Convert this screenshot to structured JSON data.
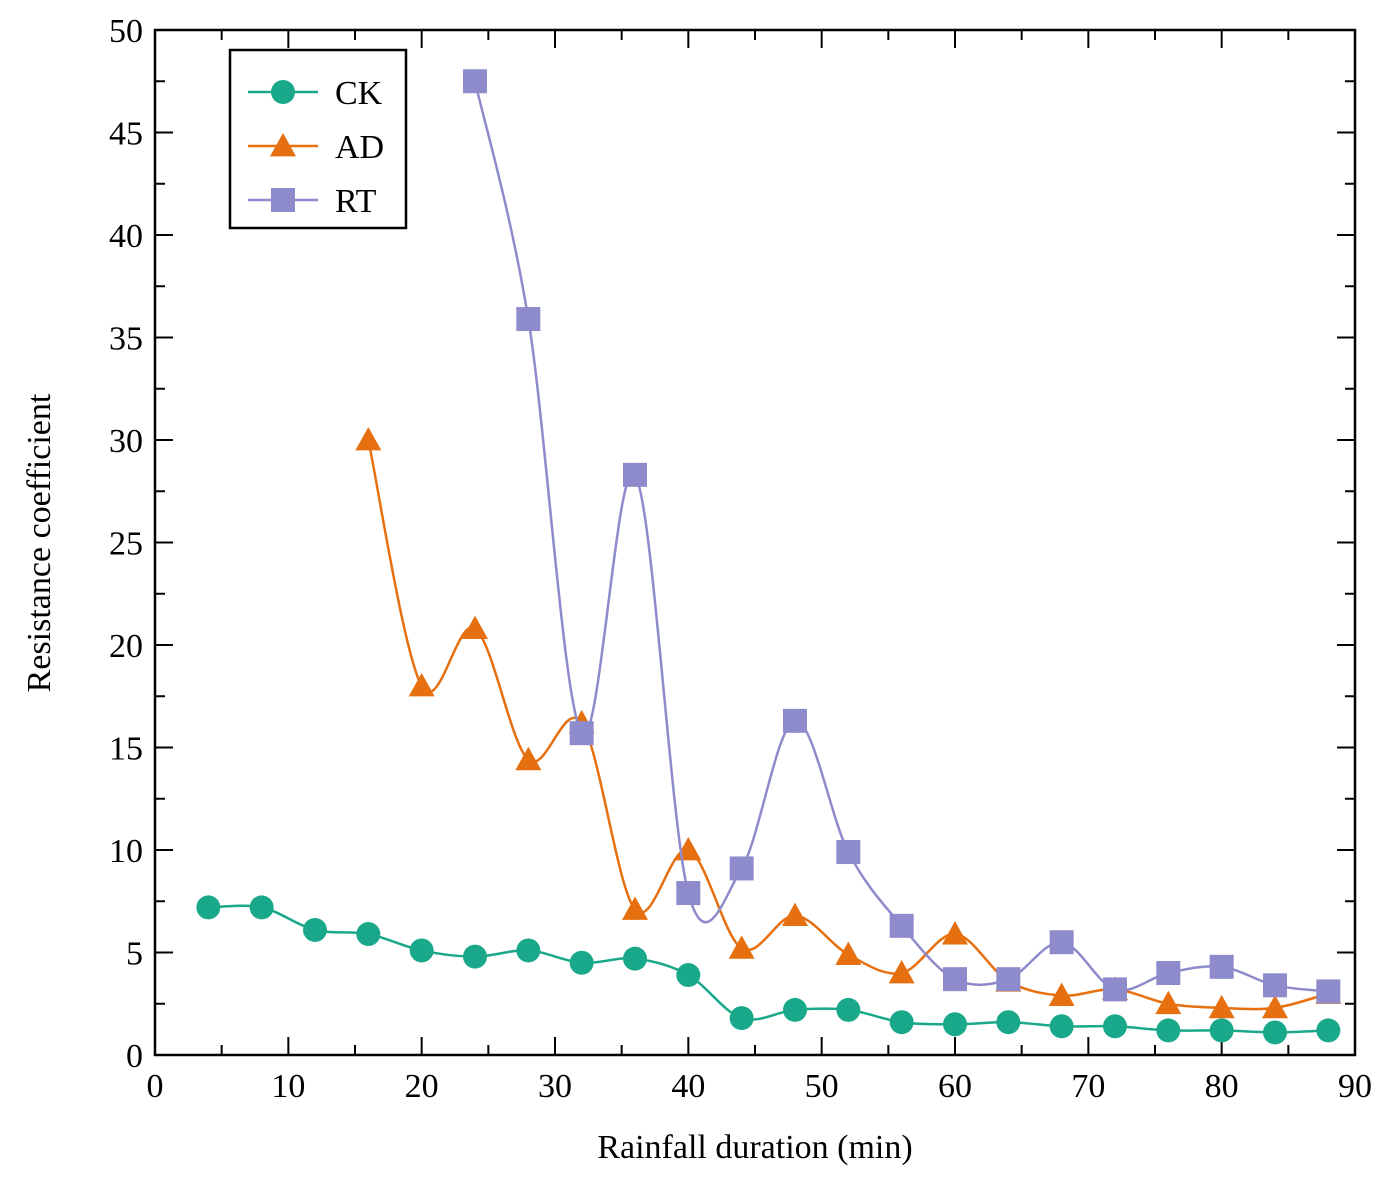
{
  "chart_data": {
    "type": "line",
    "title": "",
    "xlabel": "Rainfall duration (min)",
    "ylabel": "Resistance coefficient",
    "xlim": [
      0,
      90
    ],
    "ylim": [
      0,
      50
    ],
    "xticks": [
      "0",
      "10",
      "20",
      "30",
      "40",
      "50",
      "60",
      "70",
      "80",
      "90"
    ],
    "yticks": [
      "0",
      "5",
      "10",
      "15",
      "20",
      "25",
      "30",
      "35",
      "40",
      "45",
      "50"
    ],
    "grid": false,
    "legend_position": "top-left",
    "series": [
      {
        "name": "CK",
        "color": "#1aa88a",
        "marker": "circle",
        "x": [
          4,
          8,
          12,
          16,
          20,
          24,
          28,
          32,
          36,
          40,
          44,
          48,
          52,
          56,
          60,
          64,
          68,
          72,
          76,
          80,
          84,
          88
        ],
        "y": [
          7.2,
          7.2,
          6.1,
          5.9,
          5.1,
          4.8,
          5.1,
          4.5,
          4.7,
          3.9,
          1.8,
          2.2,
          2.2,
          1.6,
          1.5,
          1.6,
          1.4,
          1.4,
          1.2,
          1.2,
          1.1,
          1.2
        ]
      },
      {
        "name": "AD",
        "color": "#e6700f",
        "marker": "triangle",
        "x": [
          16,
          20,
          24,
          28,
          32,
          36,
          40,
          44,
          48,
          52,
          56,
          60,
          64,
          68,
          72,
          76,
          80,
          84,
          88
        ],
        "y": [
          30.0,
          18.0,
          20.8,
          14.4,
          16.2,
          7.1,
          10.0,
          5.2,
          6.8,
          4.9,
          4.0,
          5.9,
          3.6,
          2.9,
          3.2,
          2.5,
          2.3,
          2.3,
          3.0
        ]
      },
      {
        "name": "RT",
        "color": "#8d8bcb",
        "marker": "square",
        "x": [
          24,
          28,
          32,
          36,
          40,
          44,
          48,
          52,
          56,
          60,
          64,
          68,
          72,
          76,
          80,
          84,
          88
        ],
        "y": [
          47.5,
          35.9,
          15.7,
          28.3,
          7.9,
          9.1,
          16.3,
          9.9,
          6.3,
          3.7,
          3.7,
          5.5,
          3.2,
          4.0,
          4.3,
          3.4,
          3.1
        ]
      }
    ]
  }
}
